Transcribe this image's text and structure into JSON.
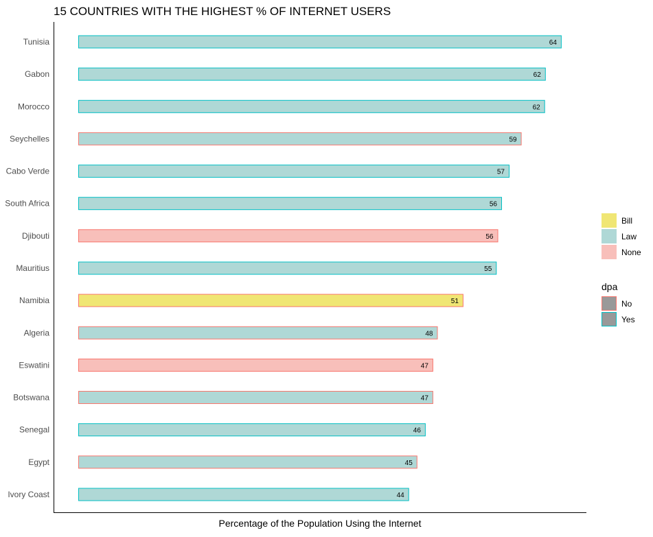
{
  "chart_data": {
    "type": "bar",
    "orientation": "horizontal",
    "title": "15 COUNTRIES WITH THE HIGHEST % OF INTERNET USERS",
    "xlabel": "Percentage of the Population Using the Internet",
    "ylabel": "",
    "xlim": [
      0,
      70
    ],
    "grid": false,
    "legend_placement": "right",
    "categories": [
      "Tunisia",
      "Gabon",
      "Morocco",
      "Seychelles",
      "Cabo Verde",
      "South Africa",
      "Djibouti",
      "Mauritius",
      "Namibia",
      "Algeria",
      "Eswatini",
      "Botswana",
      "Senegal",
      "Egypt",
      "Ivory Coast"
    ],
    "values": [
      64,
      62,
      62,
      59,
      57,
      56,
      56,
      55,
      51,
      48,
      47,
      47,
      46,
      45,
      44
    ],
    "exact_values": [
      63.9,
      61.8,
      61.7,
      58.6,
      57.0,
      56.0,
      55.5,
      55.3,
      50.9,
      47.5,
      46.9,
      46.9,
      45.9,
      44.8,
      43.7
    ],
    "fill_group": [
      "Law",
      "Law",
      "Law",
      "Law",
      "Law",
      "Law",
      "None",
      "Law",
      "Bill",
      "Law",
      "None",
      "Law",
      "Law",
      "Law",
      "Law"
    ],
    "outline_group": [
      "Yes",
      "Yes",
      "Yes",
      "No",
      "Yes",
      "Yes",
      "No",
      "Yes",
      "No",
      "No",
      "No",
      "No",
      "Yes",
      "No",
      "Yes"
    ],
    "fill_legend": {
      "title": "",
      "entries": [
        {
          "name": "Bill",
          "color": "#f0e674"
        },
        {
          "name": "Law",
          "color": "#afd8d6"
        },
        {
          "name": "None",
          "color": "#f8bfba"
        }
      ]
    },
    "outline_legend": {
      "title": "dpa",
      "swatch_fill": "#999999",
      "entries": [
        {
          "name": "No",
          "color": "#f8766d"
        },
        {
          "name": "Yes",
          "color": "#00bfc4"
        }
      ]
    }
  }
}
